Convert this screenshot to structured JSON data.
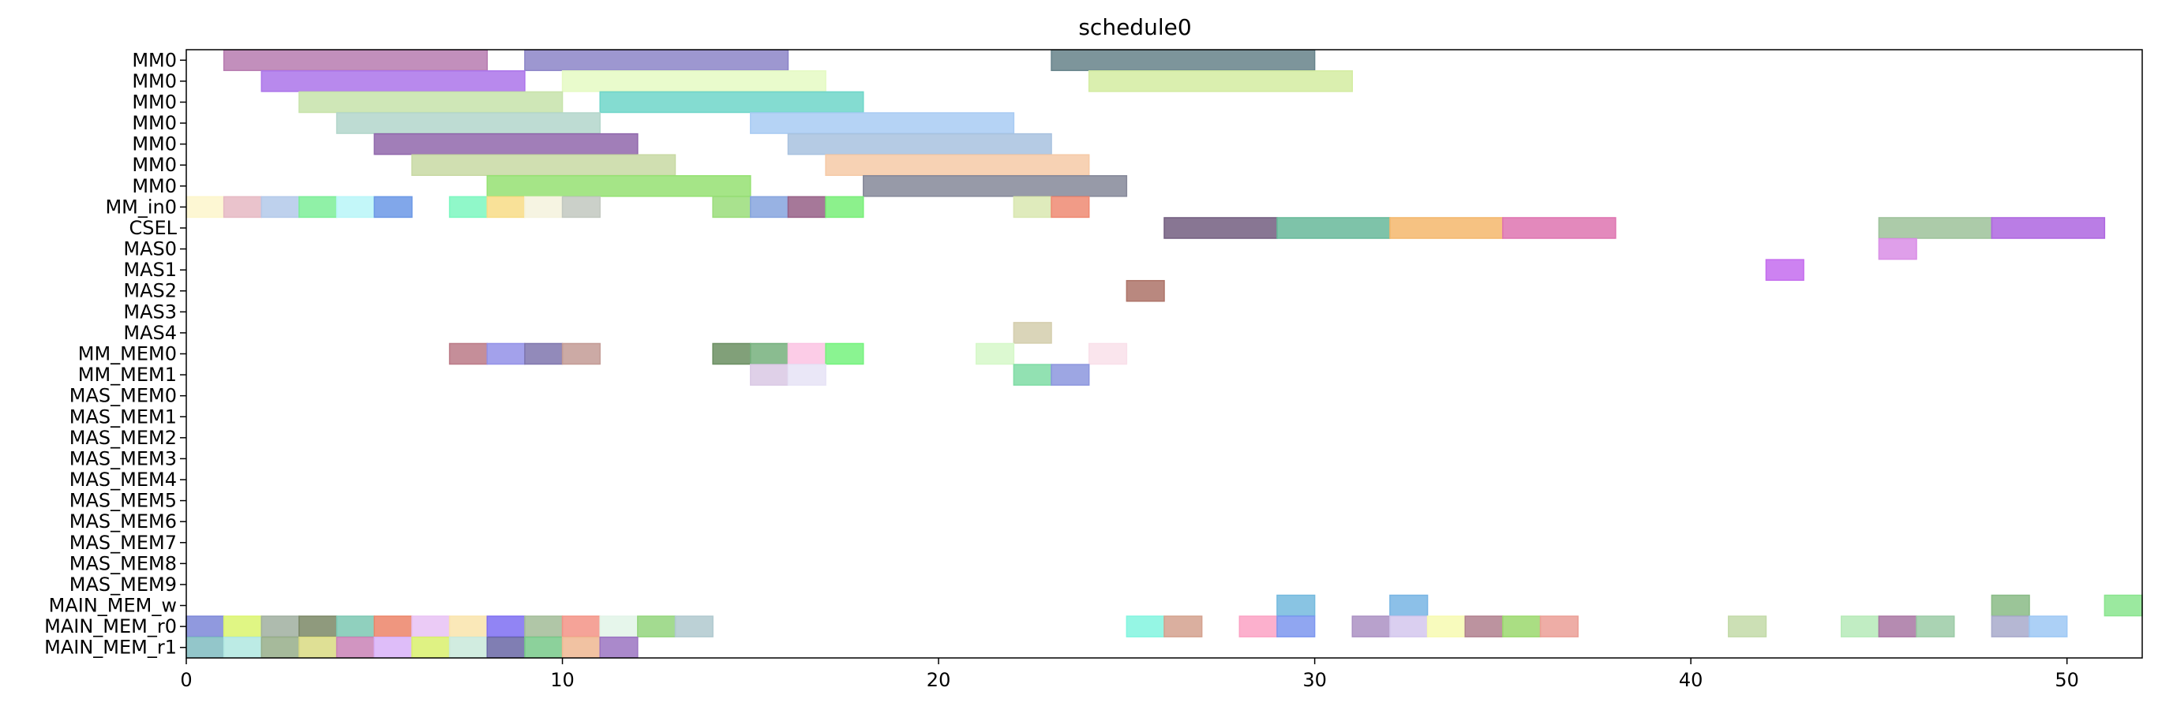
{
  "chart_data": {
    "type": "gantt",
    "title": "schedule0",
    "xlabel": "",
    "ylabel": "",
    "xlim": [
      0,
      52
    ],
    "xticks": [
      0,
      10,
      20,
      30,
      40,
      50
    ],
    "grid": false,
    "rows": [
      "MM0",
      "MM0",
      "MM0",
      "MM0",
      "MM0",
      "MM0",
      "MM0",
      "MM_in0",
      "CSEL",
      "MAS0",
      "MAS1",
      "MAS2",
      "MAS3",
      "MAS4",
      "MM_MEM0",
      "MM_MEM1",
      "MAS_MEM0",
      "MAS_MEM1",
      "MAS_MEM2",
      "MAS_MEM3",
      "MAS_MEM4",
      "MAS_MEM5",
      "MAS_MEM6",
      "MAS_MEM7",
      "MAS_MEM8",
      "MAS_MEM9",
      "MAIN_MEM_w",
      "MAIN_MEM_r0",
      "MAIN_MEM_r1"
    ],
    "tasks": [
      {
        "row": 0,
        "start": 1,
        "end": 8,
        "color": "#b77bb0"
      },
      {
        "row": 0,
        "start": 9,
        "end": 16,
        "color": "#8c85c8"
      },
      {
        "row": 0,
        "start": 23,
        "end": 30,
        "color": "#66838a"
      },
      {
        "row": 1,
        "start": 2,
        "end": 9,
        "color": "#ac74ea"
      },
      {
        "row": 1,
        "start": 10,
        "end": 17,
        "color": "#e5fac3"
      },
      {
        "row": 1,
        "start": 24,
        "end": 31,
        "color": "#d3eca1"
      },
      {
        "row": 2,
        "start": 3,
        "end": 10,
        "color": "#c7e3aa"
      },
      {
        "row": 2,
        "start": 11,
        "end": 18,
        "color": "#6ed6c9"
      },
      {
        "row": 3,
        "start": 4,
        "end": 11,
        "color": "#b3d6cb"
      },
      {
        "row": 3,
        "start": 15,
        "end": 22,
        "color": "#a8cbf3"
      },
      {
        "row": 4,
        "start": 5,
        "end": 12,
        "color": "#9067ac"
      },
      {
        "row": 4,
        "start": 16,
        "end": 23,
        "color": "#a8c2df"
      },
      {
        "row": 5,
        "start": 6,
        "end": 13,
        "color": "#c8d9a3"
      },
      {
        "row": 5,
        "start": 17,
        "end": 24,
        "color": "#f6caa7"
      },
      {
        "row": 6,
        "start": 8,
        "end": 15,
        "color": "#95e172"
      },
      {
        "row": 6,
        "start": 18,
        "end": 25,
        "color": "#858899"
      },
      {
        "row": 7,
        "start": 0,
        "end": 1,
        "color": "#fdf6cb"
      },
      {
        "row": 7,
        "start": 1,
        "end": 2,
        "color": "#e6b9c3"
      },
      {
        "row": 7,
        "start": 2,
        "end": 3,
        "color": "#b3c9ea"
      },
      {
        "row": 7,
        "start": 3,
        "end": 4,
        "color": "#7cef98"
      },
      {
        "row": 7,
        "start": 4,
        "end": 5,
        "color": "#b8f6f8"
      },
      {
        "row": 7,
        "start": 5,
        "end": 6,
        "color": "#6b98e6"
      },
      {
        "row": 7,
        "start": 7,
        "end": 8,
        "color": "#7cf7c0"
      },
      {
        "row": 7,
        "start": 8,
        "end": 9,
        "color": "#f8dc86"
      },
      {
        "row": 7,
        "start": 9,
        "end": 10,
        "color": "#f4f2dd"
      },
      {
        "row": 7,
        "start": 10,
        "end": 11,
        "color": "#c2c8c0"
      },
      {
        "row": 7,
        "start": 14,
        "end": 15,
        "color": "#9add7a"
      },
      {
        "row": 7,
        "start": 15,
        "end": 16,
        "color": "#86a4de"
      },
      {
        "row": 7,
        "start": 16,
        "end": 17,
        "color": "#976087"
      },
      {
        "row": 7,
        "start": 17,
        "end": 18,
        "color": "#78ef78"
      },
      {
        "row": 7,
        "start": 22,
        "end": 23,
        "color": "#d9e7b0"
      },
      {
        "row": 7,
        "start": 23,
        "end": 24,
        "color": "#ef8972"
      },
      {
        "row": 8,
        "start": 26,
        "end": 29,
        "color": "#735e80"
      },
      {
        "row": 8,
        "start": 29,
        "end": 32,
        "color": "#67b99a"
      },
      {
        "row": 8,
        "start": 32,
        "end": 35,
        "color": "#f4b76c"
      },
      {
        "row": 8,
        "start": 35,
        "end": 38,
        "color": "#de74b0"
      },
      {
        "row": 8,
        "start": 45,
        "end": 48,
        "color": "#9dc29a"
      },
      {
        "row": 8,
        "start": 48,
        "end": 51,
        "color": "#ae66e0"
      },
      {
        "row": 9,
        "start": 45,
        "end": 46,
        "color": "#d98ee6"
      },
      {
        "row": 10,
        "start": 42,
        "end": 43,
        "color": "#c46cee"
      },
      {
        "row": 11,
        "start": 25,
        "end": 26,
        "color": "#ad7368"
      },
      {
        "row": 13,
        "start": 22,
        "end": 23,
        "color": "#d4cead"
      },
      {
        "row": 14,
        "start": 7,
        "end": 8,
        "color": "#bb7a87"
      },
      {
        "row": 14,
        "start": 8,
        "end": 9,
        "color": "#9391e8"
      },
      {
        "row": 14,
        "start": 9,
        "end": 10,
        "color": "#7f76ae"
      },
      {
        "row": 14,
        "start": 10,
        "end": 11,
        "color": "#c39b95"
      },
      {
        "row": 14,
        "start": 14,
        "end": 15,
        "color": "#6b8f62"
      },
      {
        "row": 14,
        "start": 15,
        "end": 16,
        "color": "#75b07d"
      },
      {
        "row": 14,
        "start": 16,
        "end": 17,
        "color": "#fbc3e3"
      },
      {
        "row": 14,
        "start": 17,
        "end": 18,
        "color": "#75f27e"
      },
      {
        "row": 14,
        "start": 21,
        "end": 22,
        "color": "#d6f8c9"
      },
      {
        "row": 14,
        "start": 24,
        "end": 25,
        "color": "#f9e0ea"
      },
      {
        "row": 15,
        "start": 15,
        "end": 16,
        "color": "#d9c8e4"
      },
      {
        "row": 15,
        "start": 16,
        "end": 17,
        "color": "#e6e3f6"
      },
      {
        "row": 15,
        "start": 22,
        "end": 23,
        "color": "#7fdca5"
      },
      {
        "row": 15,
        "start": 23,
        "end": 24,
        "color": "#8c96de"
      },
      {
        "row": 26,
        "start": 29,
        "end": 30,
        "color": "#74bade"
      },
      {
        "row": 26,
        "start": 32,
        "end": 33,
        "color": "#78b5e4"
      },
      {
        "row": 26,
        "start": 48,
        "end": 49,
        "color": "#8abb86"
      },
      {
        "row": 26,
        "start": 51,
        "end": 52,
        "color": "#8ae58e"
      },
      {
        "row": 27,
        "start": 0,
        "end": 1,
        "color": "#7d87d8"
      },
      {
        "row": 27,
        "start": 1,
        "end": 2,
        "color": "#dbf56f"
      },
      {
        "row": 27,
        "start": 2,
        "end": 3,
        "color": "#a0afa0"
      },
      {
        "row": 27,
        "start": 3,
        "end": 4,
        "color": "#7b8866"
      },
      {
        "row": 27,
        "start": 4,
        "end": 5,
        "color": "#7dc8b3"
      },
      {
        "row": 27,
        "start": 5,
        "end": 6,
        "color": "#ec8468"
      },
      {
        "row": 27,
        "start": 6,
        "end": 7,
        "color": "#e8c2f4"
      },
      {
        "row": 27,
        "start": 7,
        "end": 8,
        "color": "#f9e4ac"
      },
      {
        "row": 27,
        "start": 8,
        "end": 9,
        "color": "#7e6ef2"
      },
      {
        "row": 27,
        "start": 9,
        "end": 10,
        "color": "#a2bc98"
      },
      {
        "row": 27,
        "start": 10,
        "end": 11,
        "color": "#f39386"
      },
      {
        "row": 27,
        "start": 11,
        "end": 12,
        "color": "#e2f4e8"
      },
      {
        "row": 27,
        "start": 12,
        "end": 13,
        "color": "#93d57c"
      },
      {
        "row": 27,
        "start": 13,
        "end": 14,
        "color": "#b0c9cf"
      },
      {
        "row": 27,
        "start": 25,
        "end": 26,
        "color": "#82f5df"
      },
      {
        "row": 27,
        "start": 26,
        "end": 27,
        "color": "#d4a18e"
      },
      {
        "row": 27,
        "start": 28,
        "end": 29,
        "color": "#fba2c4"
      },
      {
        "row": 27,
        "start": 29,
        "end": 30,
        "color": "#7c97ef"
      },
      {
        "row": 27,
        "start": 31,
        "end": 32,
        "color": "#ab91c3"
      },
      {
        "row": 27,
        "start": 32,
        "end": 33,
        "color": "#d3c7ed"
      },
      {
        "row": 27,
        "start": 33,
        "end": 34,
        "color": "#f7fab1"
      },
      {
        "row": 27,
        "start": 34,
        "end": 35,
        "color": "#b0808e"
      },
      {
        "row": 27,
        "start": 35,
        "end": 36,
        "color": "#9bd86d"
      },
      {
        "row": 27,
        "start": 36,
        "end": 37,
        "color": "#eb9f96"
      },
      {
        "row": 27,
        "start": 41,
        "end": 42,
        "color": "#c3daa8"
      },
      {
        "row": 27,
        "start": 44,
        "end": 45,
        "color": "#b6eab8"
      },
      {
        "row": 27,
        "start": 45,
        "end": 46,
        "color": "#a877a3"
      },
      {
        "row": 27,
        "start": 46,
        "end": 47,
        "color": "#9bcba6"
      },
      {
        "row": 27,
        "start": 48,
        "end": 49,
        "color": "#a8aacb"
      },
      {
        "row": 27,
        "start": 49,
        "end": 50,
        "color": "#9dc8f5"
      },
      {
        "row": 28,
        "start": 0,
        "end": 1,
        "color": "#80bcc1"
      },
      {
        "row": 28,
        "start": 1,
        "end": 2,
        "color": "#b0e7e0"
      },
      {
        "row": 28,
        "start": 2,
        "end": 3,
        "color": "#97ae89"
      },
      {
        "row": 28,
        "start": 3,
        "end": 4,
        "color": "#d9db82"
      },
      {
        "row": 28,
        "start": 4,
        "end": 5,
        "color": "#c983b6"
      },
      {
        "row": 28,
        "start": 5,
        "end": 6,
        "color": "#d8b2f8"
      },
      {
        "row": 28,
        "start": 6,
        "end": 7,
        "color": "#d9f06d"
      },
      {
        "row": 28,
        "start": 7,
        "end": 8,
        "color": "#c9e9db"
      },
      {
        "row": 28,
        "start": 8,
        "end": 9,
        "color": "#6a67a6"
      },
      {
        "row": 28,
        "start": 9,
        "end": 10,
        "color": "#78c989"
      },
      {
        "row": 28,
        "start": 10,
        "end": 11,
        "color": "#efb792"
      },
      {
        "row": 28,
        "start": 11,
        "end": 12,
        "color": "#9b74c2"
      }
    ]
  }
}
